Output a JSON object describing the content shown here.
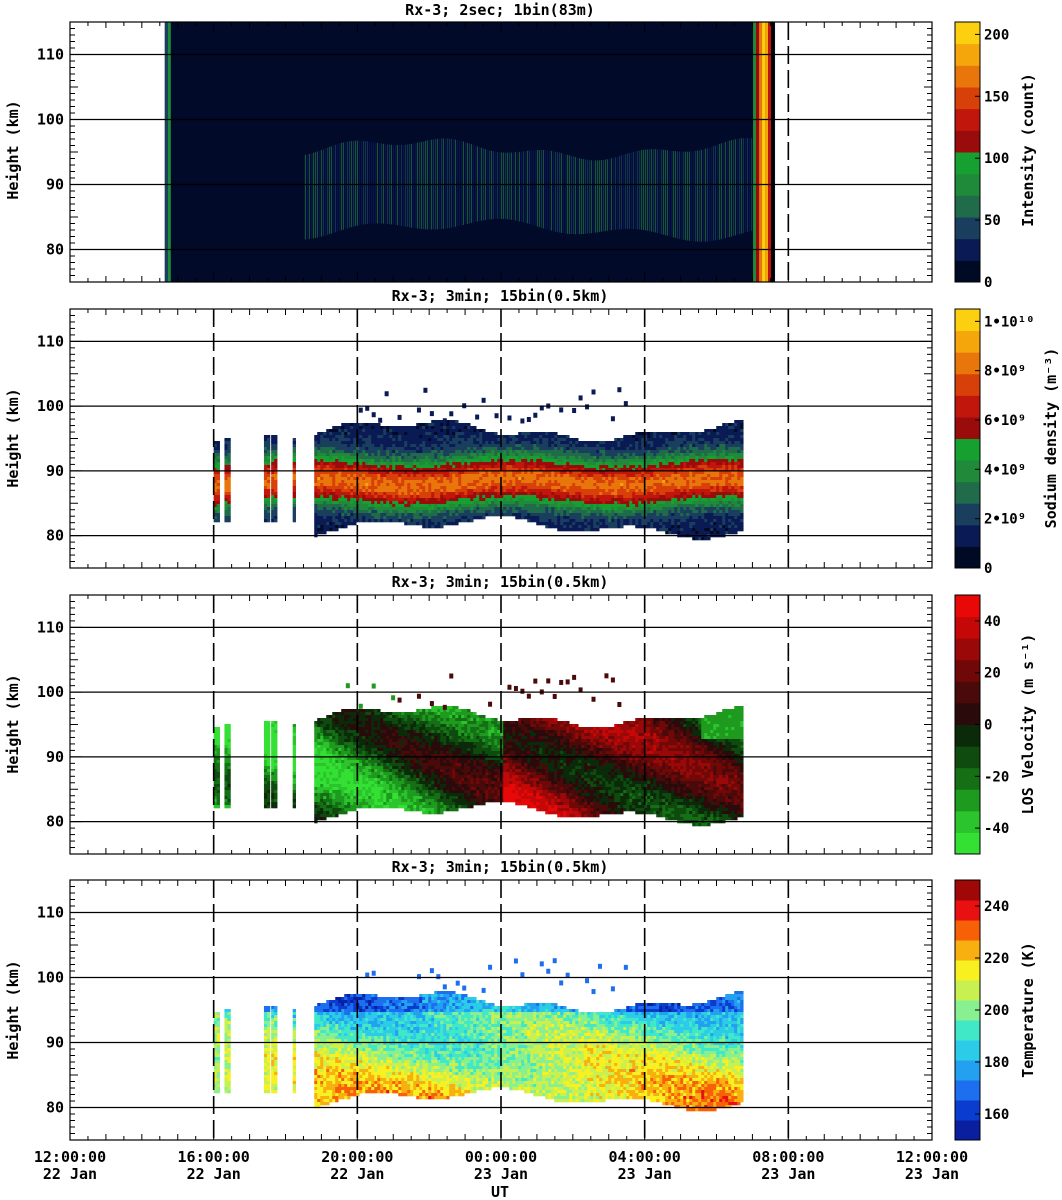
{
  "figure": {
    "x_axis_label": "UT",
    "x_ticks": [
      {
        "time": "12:00:00",
        "date": "22 Jan"
      },
      {
        "time": "16:00:00",
        "date": "22 Jan"
      },
      {
        "time": "20:00:00",
        "date": "22 Jan"
      },
      {
        "time": "00:00:00",
        "date": "23 Jan"
      },
      {
        "time": "04:00:00",
        "date": "23 Jan"
      },
      {
        "time": "08:00:00",
        "date": "23 Jan"
      },
      {
        "time": "12:00:00",
        "date": "23 Jan"
      }
    ]
  },
  "chart_data": [
    {
      "type": "heatmap",
      "title": "Rx-3;  2sec; 1bin(83m)",
      "ylabel": "Height (km)",
      "ylim": [
        75,
        115
      ],
      "yticks": [
        80,
        90,
        100,
        110
      ],
      "xlim_hours_ut": [
        12,
        36
      ],
      "colorbar": {
        "label": "Intensity (count)",
        "range": [
          0,
          210
        ],
        "ticks": [
          "0",
          "50",
          "100",
          "150",
          "200"
        ],
        "colors": [
          "#000a24",
          "#0a1a55",
          "#1a3f5e",
          "#1f6b4a",
          "#1e8a3a",
          "#16a030",
          "#9a0c0c",
          "#c0160c",
          "#d8400a",
          "#e8760a",
          "#f4a60a",
          "#fcd010"
        ]
      },
      "data_window_hours_ut": [
        14.64,
        31.63
      ],
      "background_color": "#020a2a",
      "layer_km": [
        82,
        96
      ],
      "dashed_gridlines_hours_ut": [
        32
      ]
    },
    {
      "type": "heatmap",
      "title": "Rx-3; 3min; 15bin(0.5km)",
      "ylabel": "Height (km)",
      "ylim": [
        75,
        115
      ],
      "yticks": [
        80,
        90,
        100,
        110
      ],
      "colorbar": {
        "label": "Sodium density (m⁻³)",
        "range": [
          0,
          10500000000.0
        ],
        "ticks": [
          "0",
          "2•10⁹",
          "4•10⁹",
          "6•10⁹",
          "8•10⁹",
          "1•10¹⁰"
        ],
        "colors": [
          "#000a24",
          "#0a1a55",
          "#1a3f5e",
          "#1f6b4a",
          "#1e8a3a",
          "#16a030",
          "#9a0c0c",
          "#c0160c",
          "#d8400a",
          "#e8760a",
          "#f4a60a",
          "#fcd010"
        ]
      },
      "dashed_gridlines_hours_ut": [
        16,
        20,
        24,
        28,
        32
      ],
      "layer": {
        "core_km": [
          83,
          94
        ],
        "top_km": 97,
        "bottom_km": 81,
        "sporadic_top_km": 103,
        "segments_hours_ut": [
          [
            16.0,
            16.1
          ],
          [
            16.3,
            16.45
          ],
          [
            17.4,
            17.5
          ],
          [
            17.6,
            17.7
          ],
          [
            18.2,
            18.26
          ],
          [
            18.8,
            30.7
          ]
        ]
      }
    },
    {
      "type": "heatmap",
      "title": "Rx-3; 3min; 15bin(0.5km)",
      "ylabel": "Height (km)",
      "ylim": [
        75,
        115
      ],
      "yticks": [
        80,
        90,
        100,
        110
      ],
      "colorbar": {
        "label": "LOS Velocity (m s⁻¹)",
        "range": [
          -50,
          50
        ],
        "ticks": [
          "-40",
          "-20",
          "0",
          "20",
          "40"
        ],
        "colors": [
          "#33e033",
          "#2cc42c",
          "#1e9a1e",
          "#157015",
          "#0f4a0f",
          "#0a2a0a",
          "#2a0a0a",
          "#4a0a0a",
          "#700808",
          "#9a0808",
          "#c40808",
          "#e80808"
        ]
      },
      "dashed_gridlines_hours_ut": [
        16,
        20,
        24,
        28,
        32
      ]
    },
    {
      "type": "heatmap",
      "title": "Rx-3; 3min; 15bin(0.5km)",
      "ylabel": "Height (km)",
      "ylim": [
        75,
        115
      ],
      "yticks": [
        80,
        90,
        100,
        110
      ],
      "colorbar": {
        "label": "Temperature (K)",
        "range": [
          150,
          250
        ],
        "ticks": [
          "160",
          "180",
          "200",
          "220",
          "240"
        ],
        "colors": [
          "#0a1ea0",
          "#0a3cd0",
          "#1e6ef0",
          "#23a0f0",
          "#2ccce8",
          "#40e8c8",
          "#88f090",
          "#c8f050",
          "#f8f020",
          "#f8b010",
          "#f86008",
          "#e81010",
          "#a00808"
        ]
      },
      "dashed_gridlines_hours_ut": [
        16,
        20,
        24,
        28,
        32
      ]
    }
  ]
}
